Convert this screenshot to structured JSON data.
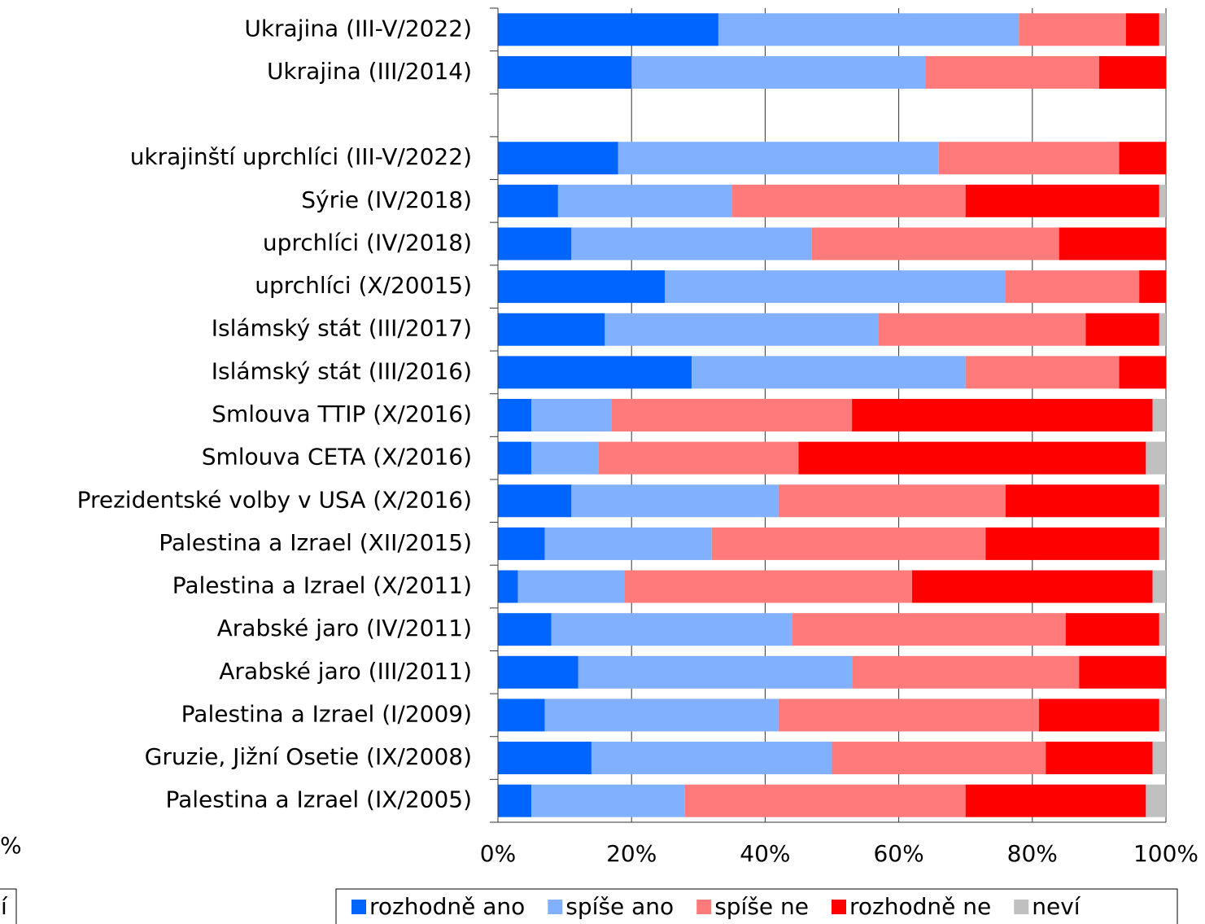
{
  "chart_data": {
    "type": "stacked_bar_horizontal",
    "categories": [
      "Ukrajina (III-V/2022)",
      "Ukrajina (III/2014)",
      null,
      "ukrajinští uprchlíci (III-V/2022)",
      "Sýrie (IV/2018)",
      "uprchlíci (IV/2018)",
      "uprchlíci (X/20015)",
      "Islámský stát (III/2017)",
      "Islámský stát (III/2016)",
      "Smlouva TTIP (X/2016)",
      "Smlouva CETA (X/2016)",
      "Prezidentské volby v USA (X/2016)",
      "Palestina a Izrael (XII/2015)",
      "Palestina a Izrael (X/2011)",
      "Arabské jaro (IV/2011)",
      "Arabské jaro (III/2011)",
      "Palestina a Izrael (I/2009)",
      "Gruzie, Jižní Osetie (IX/2008)",
      "Palestina a Izrael (IX/2005)"
    ],
    "series": [
      {
        "name": "rozhodně ano",
        "color": "#0064ff",
        "values": [
          33,
          20,
          null,
          18,
          9,
          11,
          25,
          16,
          29,
          5,
          5,
          11,
          7,
          3,
          8,
          12,
          7,
          14,
          5
        ]
      },
      {
        "name": "spíše ano",
        "color": "#80b0ff",
        "values": [
          45,
          44,
          null,
          48,
          26,
          36,
          51,
          41,
          41,
          12,
          10,
          31,
          25,
          16,
          36,
          41,
          35,
          36,
          23
        ]
      },
      {
        "name": "spíše ne",
        "color": "#ff7b7b",
        "values": [
          16,
          26,
          null,
          27,
          35,
          37,
          20,
          31,
          23,
          36,
          30,
          34,
          41,
          43,
          41,
          34,
          39,
          32,
          42
        ]
      },
      {
        "name": "rozhodně ne",
        "color": "#ff0000",
        "values": [
          5,
          10,
          null,
          7,
          29,
          16,
          4,
          11,
          7,
          45,
          52,
          23,
          26,
          36,
          14,
          13,
          18,
          16,
          27
        ]
      },
      {
        "name": "neví",
        "color": "#c0c0c0",
        "values": [
          1,
          0,
          null,
          0,
          1,
          0,
          0,
          1,
          0,
          2,
          3,
          1,
          1,
          2,
          1,
          0,
          1,
          2,
          3
        ]
      }
    ],
    "xlim": [
      0,
      100
    ],
    "xticks": [
      {
        "value": 0,
        "label": "0%"
      },
      {
        "value": 20,
        "label": "20%"
      },
      {
        "value": 40,
        "label": "40%"
      },
      {
        "value": 60,
        "label": "60%"
      },
      {
        "value": 80,
        "label": "80%"
      },
      {
        "value": 100,
        "label": "100%"
      }
    ],
    "grid": true,
    "legend": "bottom",
    "annotations": [
      "%",
      "í"
    ]
  }
}
